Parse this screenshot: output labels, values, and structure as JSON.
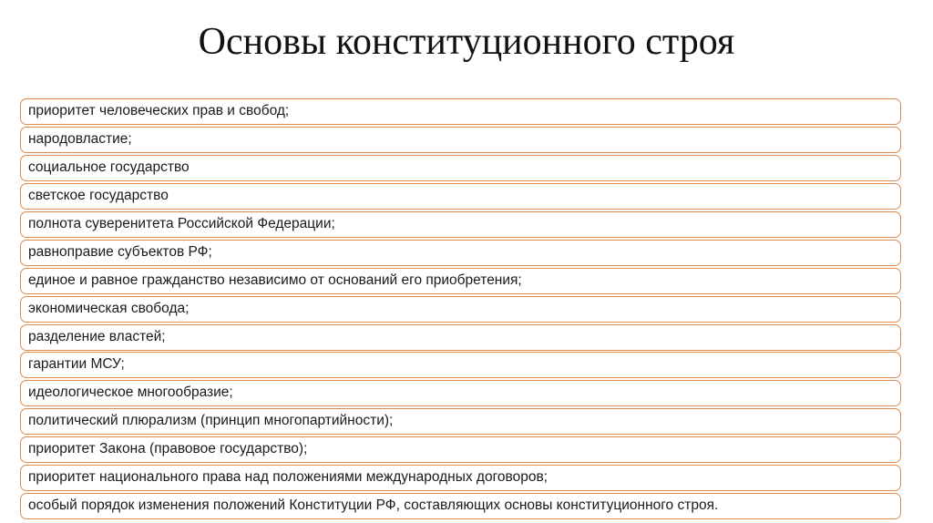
{
  "title": "Основы конституционного строя",
  "items": [
    "приоритет человеческих прав и свобод;",
    "народовластие;",
    "социальное государство",
    "светское государство",
    "полнота суверенитета Российской Федерации;",
    "равноправие субъектов РФ;",
    "единое и равное гражданство независимо от оснований его приобретения;",
    "экономическая свобода;",
    "разделение властей;",
    "гарантии МСУ;",
    "идеологическое многообразие;",
    "политический плюрализм (принцип многопартийности);",
    "приоритет Закона (правовое государство);",
    "приоритет национального права над положениями международных договоров;",
    "особый порядок изменения положений Конституции РФ, составляющих основы конституционного строя."
  ],
  "colors": {
    "border": "#e08a4c",
    "text": "#1a1a1a"
  }
}
